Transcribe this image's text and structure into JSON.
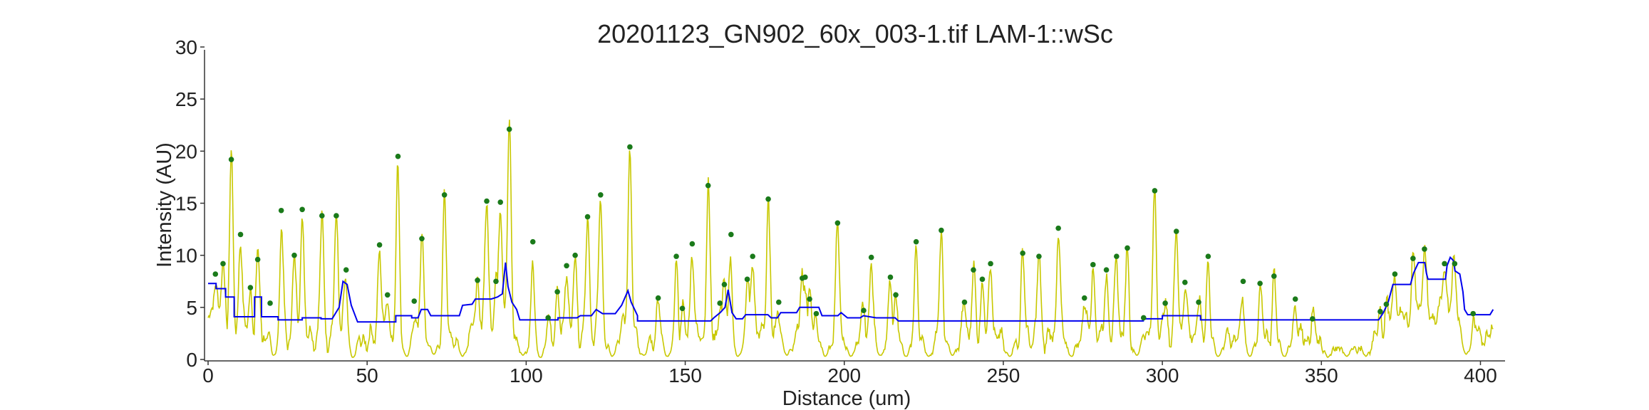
{
  "chart_data": {
    "type": "line",
    "title": "20201123_GN902_60x_003-1.tif LAM-1::wSc",
    "xlabel": "Distance (um)",
    "ylabel": "Intensity (AU)",
    "xlim": [
      0,
      405
    ],
    "ylim": [
      0,
      30
    ],
    "xticks": [
      0,
      50,
      100,
      150,
      200,
      250,
      300,
      350,
      400
    ],
    "yticks": [
      0,
      5,
      10,
      15,
      20,
      25,
      30
    ],
    "colors": {
      "signal": "#c8c800",
      "baseline": "#0000ee",
      "peaks": "#1a7a1a",
      "axis": "#333333"
    },
    "peaks": [
      [
        2.3,
        8.2
      ],
      [
        4.7,
        9.2
      ],
      [
        7.3,
        19.2
      ],
      [
        10.2,
        12.0
      ],
      [
        13.3,
        6.9
      ],
      [
        15.6,
        9.6
      ],
      [
        19.5,
        5.4
      ],
      [
        23.0,
        14.3
      ],
      [
        27.1,
        10.0
      ],
      [
        29.6,
        14.4
      ],
      [
        35.8,
        13.8
      ],
      [
        40.3,
        13.8
      ],
      [
        43.4,
        8.6
      ],
      [
        53.9,
        11.0
      ],
      [
        56.4,
        6.2
      ],
      [
        59.7,
        19.5
      ],
      [
        64.8,
        5.6
      ],
      [
        67.2,
        11.6
      ],
      [
        74.3,
        15.8
      ],
      [
        84.7,
        7.6
      ],
      [
        87.6,
        15.2
      ],
      [
        90.5,
        7.5
      ],
      [
        91.9,
        15.1
      ],
      [
        94.7,
        22.1
      ],
      [
        102.1,
        11.3
      ],
      [
        106.9,
        4.0
      ],
      [
        109.8,
        6.5
      ],
      [
        112.7,
        9.0
      ],
      [
        115.4,
        10.0
      ],
      [
        119.3,
        13.7
      ],
      [
        123.4,
        15.8
      ],
      [
        132.6,
        20.4
      ],
      [
        141.5,
        5.9
      ],
      [
        147.2,
        9.9
      ],
      [
        149.1,
        4.9
      ],
      [
        152.2,
        11.1
      ],
      [
        157.2,
        16.7
      ],
      [
        160.9,
        5.4
      ],
      [
        162.3,
        7.2
      ],
      [
        164.4,
        12.0
      ],
      [
        169.5,
        7.7
      ],
      [
        171.2,
        9.9
      ],
      [
        176.1,
        15.4
      ],
      [
        179.4,
        5.5
      ],
      [
        186.8,
        7.8
      ],
      [
        187.7,
        7.9
      ],
      [
        189.1,
        5.8
      ],
      [
        191.2,
        4.4
      ],
      [
        197.9,
        13.1
      ],
      [
        206.1,
        4.7
      ],
      [
        208.5,
        9.8
      ],
      [
        214.5,
        7.9
      ],
      [
        216.2,
        6.2
      ],
      [
        222.6,
        11.3
      ],
      [
        230.5,
        12.4
      ],
      [
        237.8,
        5.5
      ],
      [
        240.6,
        8.6
      ],
      [
        243.4,
        7.7
      ],
      [
        246.0,
        9.2
      ],
      [
        256.1,
        10.2
      ],
      [
        261.2,
        9.9
      ],
      [
        267.3,
        12.6
      ],
      [
        275.5,
        5.9
      ],
      [
        278.2,
        9.1
      ],
      [
        282.4,
        8.6
      ],
      [
        285.6,
        9.9
      ],
      [
        289.0,
        10.7
      ],
      [
        294.1,
        4.0
      ],
      [
        297.6,
        16.2
      ],
      [
        300.9,
        5.4
      ],
      [
        304.4,
        12.3
      ],
      [
        307.1,
        7.4
      ],
      [
        311.4,
        5.5
      ],
      [
        314.4,
        9.9
      ],
      [
        325.4,
        7.5
      ],
      [
        330.7,
        7.3
      ],
      [
        335.1,
        8.0
      ],
      [
        341.8,
        5.8
      ],
      [
        347.2,
        3.9
      ],
      [
        368.5,
        4.6
      ],
      [
        370.4,
        5.3
      ],
      [
        373.1,
        8.2
      ],
      [
        378.8,
        9.7
      ],
      [
        382.4,
        10.6
      ],
      [
        388.7,
        9.2
      ],
      [
        391.9,
        9.2
      ],
      [
        397.7,
        4.4
      ]
    ],
    "baseline": [
      [
        0,
        7.3
      ],
      [
        2.5,
        7.3
      ],
      [
        2.5,
        6.8
      ],
      [
        5.5,
        6.8
      ],
      [
        5.5,
        6.0
      ],
      [
        8.2,
        6.0
      ],
      [
        8.2,
        4.1
      ],
      [
        14.6,
        4.1
      ],
      [
        14.6,
        6.0
      ],
      [
        16.8,
        6.0
      ],
      [
        16.8,
        4.1
      ],
      [
        22.0,
        4.1
      ],
      [
        22.0,
        3.8
      ],
      [
        29.6,
        3.8
      ],
      [
        29.6,
        4.0
      ],
      [
        35.5,
        4.0
      ],
      [
        35.5,
        3.9
      ],
      [
        39.0,
        3.9
      ],
      [
        40.0,
        4.4
      ],
      [
        41.2,
        5.0
      ],
      [
        42.4,
        7.5
      ],
      [
        43.7,
        7.2
      ],
      [
        45.0,
        5.2
      ],
      [
        47.0,
        3.6
      ],
      [
        59.0,
        3.6
      ],
      [
        59.0,
        4.2
      ],
      [
        64.0,
        4.2
      ],
      [
        64.0,
        4.0
      ],
      [
        66.0,
        4.0
      ],
      [
        67.0,
        4.8
      ],
      [
        69.0,
        4.8
      ],
      [
        70.0,
        4.2
      ],
      [
        79.0,
        4.2
      ],
      [
        80.0,
        5.2
      ],
      [
        83.0,
        5.3
      ],
      [
        84.0,
        5.8
      ],
      [
        89.0,
        5.8
      ],
      [
        91.0,
        6.0
      ],
      [
        92.5,
        6.3
      ],
      [
        93.5,
        9.3
      ],
      [
        94.3,
        7.0
      ],
      [
        95.5,
        5.5
      ],
      [
        97.0,
        4.8
      ],
      [
        98.0,
        3.8
      ],
      [
        110.0,
        3.8
      ],
      [
        110.0,
        4.0
      ],
      [
        116.0,
        4.0
      ],
      [
        117.0,
        4.2
      ],
      [
        120.5,
        4.2
      ],
      [
        122.0,
        4.8
      ],
      [
        124.0,
        4.4
      ],
      [
        128.0,
        4.4
      ],
      [
        130.0,
        5.2
      ],
      [
        132.0,
        6.6
      ],
      [
        133.0,
        5.5
      ],
      [
        135.0,
        4.2
      ],
      [
        135.0,
        3.7
      ],
      [
        158.0,
        3.7
      ],
      [
        159.0,
        4.0
      ],
      [
        161.0,
        4.5
      ],
      [
        162.5,
        5.0
      ],
      [
        163.5,
        6.7
      ],
      [
        164.7,
        4.5
      ],
      [
        166.0,
        3.9
      ],
      [
        168.0,
        3.9
      ],
      [
        169.0,
        4.3
      ],
      [
        176.0,
        4.3
      ],
      [
        177.0,
        4.0
      ],
      [
        179.0,
        4.0
      ],
      [
        180.0,
        4.5
      ],
      [
        185.0,
        4.5
      ],
      [
        186.0,
        5.0
      ],
      [
        192.0,
        5.0
      ],
      [
        193.0,
        4.2
      ],
      [
        198.0,
        4.2
      ],
      [
        199.0,
        4.5
      ],
      [
        201.0,
        4.0
      ],
      [
        205.0,
        4.0
      ],
      [
        206.0,
        4.2
      ],
      [
        210.0,
        4.0
      ],
      [
        216.0,
        4.0
      ],
      [
        217.0,
        3.7
      ],
      [
        294.0,
        3.7
      ],
      [
        294.0,
        3.9
      ],
      [
        300.0,
        3.9
      ],
      [
        300.0,
        4.2
      ],
      [
        312.0,
        4.2
      ],
      [
        312.0,
        3.8
      ],
      [
        345.0,
        3.8
      ],
      [
        368.0,
        3.8
      ],
      [
        369.5,
        4.5
      ],
      [
        371.0,
        5.5
      ],
      [
        372.5,
        7.2
      ],
      [
        378.0,
        7.2
      ],
      [
        379.0,
        8.3
      ],
      [
        380.5,
        9.3
      ],
      [
        382.5,
        9.3
      ],
      [
        383.0,
        8.3
      ],
      [
        383.5,
        7.7
      ],
      [
        389.0,
        7.7
      ],
      [
        389.5,
        9.0
      ],
      [
        390.5,
        9.8
      ],
      [
        391.5,
        9.5
      ],
      [
        392.0,
        8.5
      ],
      [
        393.5,
        8.2
      ],
      [
        394.5,
        6.5
      ],
      [
        395.0,
        4.8
      ],
      [
        396.0,
        4.3
      ],
      [
        403.0,
        4.3
      ],
      [
        404.0,
        4.8
      ]
    ],
    "background_dips": [
      [
        20.5,
        0.4
      ],
      [
        45.5,
        0.2
      ],
      [
        62.5,
        0.3
      ],
      [
        71.0,
        0.5
      ],
      [
        80.0,
        0.3
      ],
      [
        99.0,
        0.4
      ],
      [
        104.5,
        0.2
      ],
      [
        127.0,
        0.3
      ],
      [
        137.0,
        0.4
      ],
      [
        144.5,
        0.3
      ],
      [
        166.5,
        0.3
      ],
      [
        182.0,
        0.4
      ],
      [
        194.0,
        0.3
      ],
      [
        202.0,
        0.3
      ],
      [
        211.5,
        0.4
      ],
      [
        219.5,
        0.3
      ],
      [
        226.5,
        0.3
      ],
      [
        234.0,
        0.4
      ],
      [
        252.0,
        0.3
      ],
      [
        271.5,
        0.3
      ],
      [
        292.0,
        0.4
      ],
      [
        317.5,
        0.3
      ],
      [
        327.5,
        0.3
      ],
      [
        338.5,
        0.3
      ],
      [
        352.0,
        0.2
      ],
      [
        358.0,
        0.3
      ],
      [
        364.0,
        0.3
      ],
      [
        395.5,
        0.5
      ]
    ]
  }
}
